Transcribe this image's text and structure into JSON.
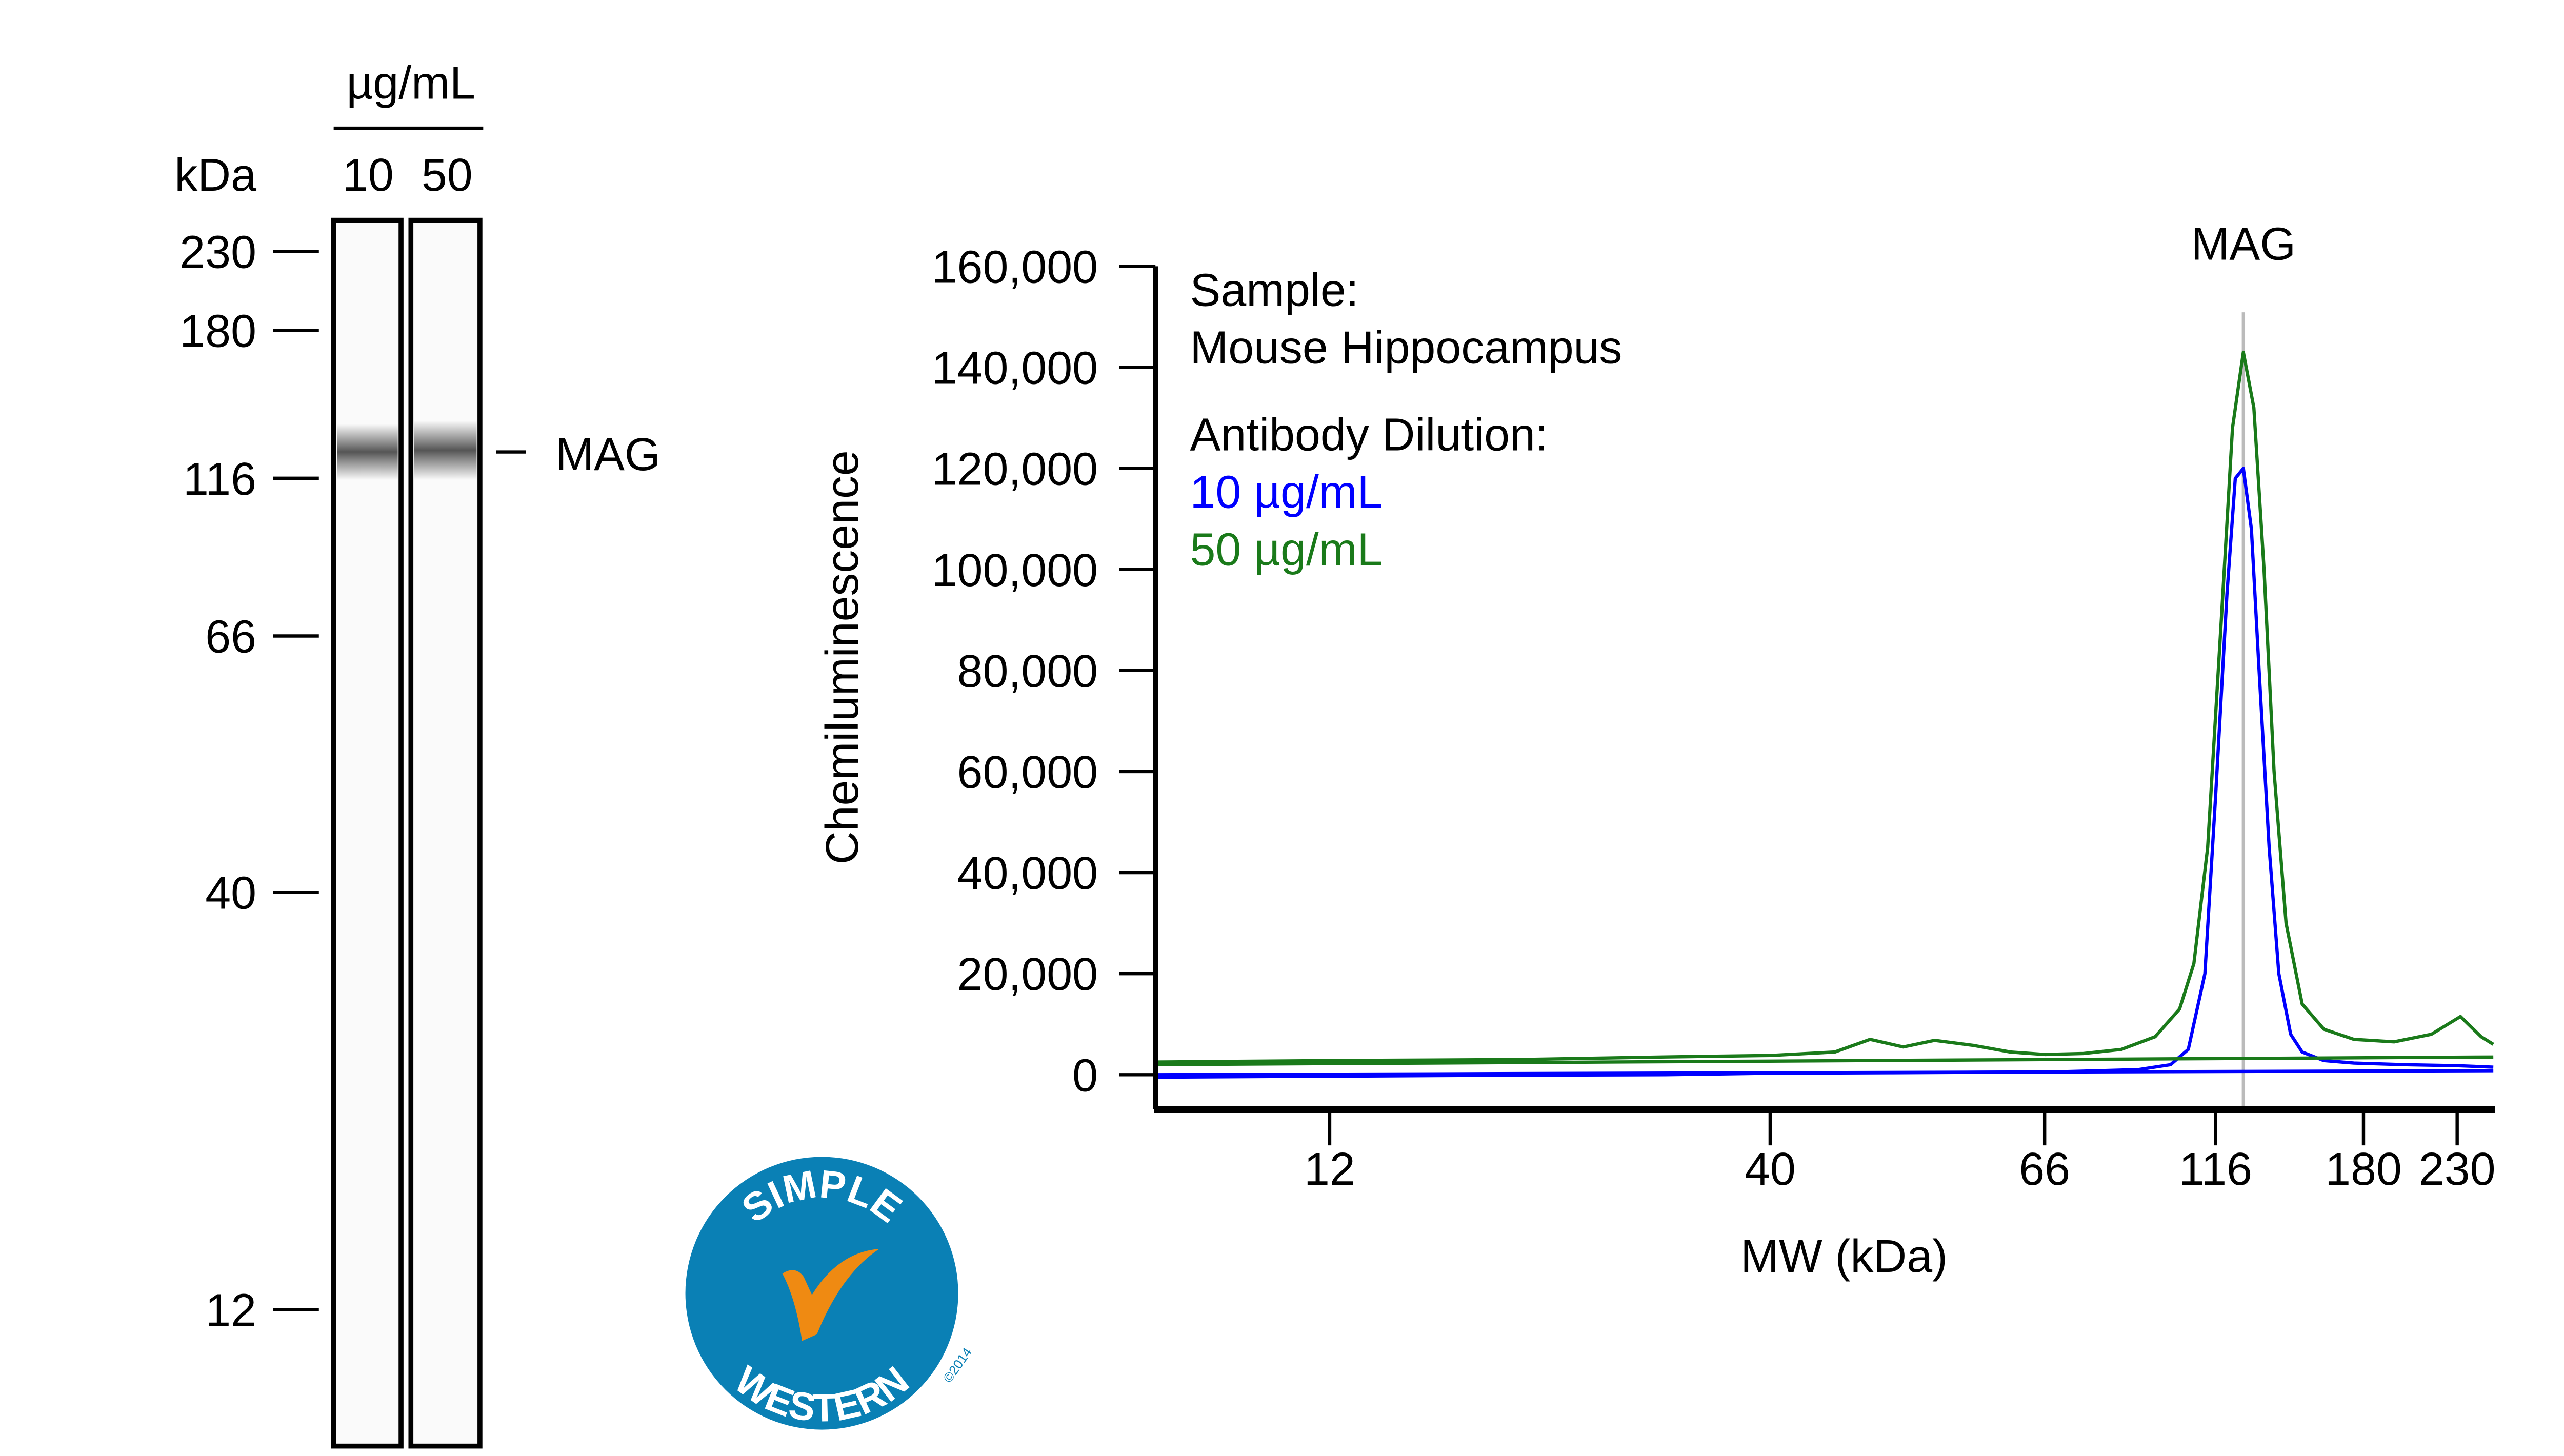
{
  "gel": {
    "unit_label": "µg/mL",
    "kda_label": "kDa",
    "lanes": [
      "10",
      "50"
    ],
    "markers": [
      "230",
      "180",
      "116",
      "66",
      "40",
      "12"
    ],
    "band_label": "MAG"
  },
  "logo": {
    "top_text": "SIMPLE",
    "bottom_text": "WESTERN",
    "copyright": "©2014",
    "colors": {
      "circle": "#0a80b5",
      "check": "#ef8a12"
    }
  },
  "chart_data": {
    "type": "line",
    "xlabel": "MW (kDa)",
    "ylabel": "Chemiluminescence",
    "xscale": "nonlinear molecular-weight scale (Simple Western size standards)",
    "x_ticks": [
      "12",
      "40",
      "66",
      "116",
      "180",
      "230"
    ],
    "y_ticks": [
      "0",
      "20,000",
      "40,000",
      "60,000",
      "80,000",
      "100,000",
      "120,000",
      "140,000",
      "160,000"
    ],
    "ylim": [
      0,
      160000
    ],
    "xlim": [
      7.5,
      253
    ],
    "annotation": {
      "label": "MAG",
      "x": 126
    },
    "legend": {
      "sample_label": "Sample:",
      "sample": "Mouse Hippocampus",
      "dilution_label": "Antibody Dilution:",
      "placement": "top-left"
    },
    "series": [
      {
        "name": "10 µg/mL",
        "color": "#0000ff",
        "x": [
          7.5,
          12,
          20,
          30,
          40,
          50,
          60,
          70,
          80,
          90,
          100,
          106,
          112,
          116,
          120,
          123,
          126,
          129,
          132,
          136,
          140,
          145,
          150,
          160,
          175,
          200,
          230,
          253
        ],
        "y": [
          -500,
          -300,
          -100,
          0,
          300,
          400,
          500,
          600,
          800,
          1000,
          2000,
          5000,
          20000,
          55000,
          95000,
          118000,
          120000,
          108000,
          80000,
          45000,
          20000,
          8000,
          4500,
          2800,
          2300,
          2000,
          1800,
          1500
        ],
        "baseline": [
          [
            7.5,
            0
          ],
          [
            253,
            800
          ]
        ]
      },
      {
        "name": "50 µg/mL",
        "color": "#1a7a1a",
        "x": [
          7.5,
          12,
          20,
          30,
          40,
          45,
          48,
          51,
          54,
          58,
          62,
          66,
          75,
          85,
          95,
          103,
          108,
          113,
          118,
          122,
          126,
          130,
          134,
          138,
          143,
          150,
          160,
          175,
          195,
          215,
          232,
          245,
          253
        ],
        "y": [
          2500,
          2800,
          3000,
          3500,
          3800,
          4500,
          7000,
          5500,
          6800,
          5800,
          4500,
          4000,
          4200,
          5000,
          7500,
          13000,
          22000,
          45000,
          90000,
          128000,
          143000,
          132000,
          100000,
          60000,
          30000,
          14000,
          9000,
          7000,
          6500,
          8000,
          11500,
          7500,
          6000
        ],
        "baseline": [
          [
            7.5,
            2000
          ],
          [
            253,
            3500
          ]
        ]
      }
    ]
  }
}
